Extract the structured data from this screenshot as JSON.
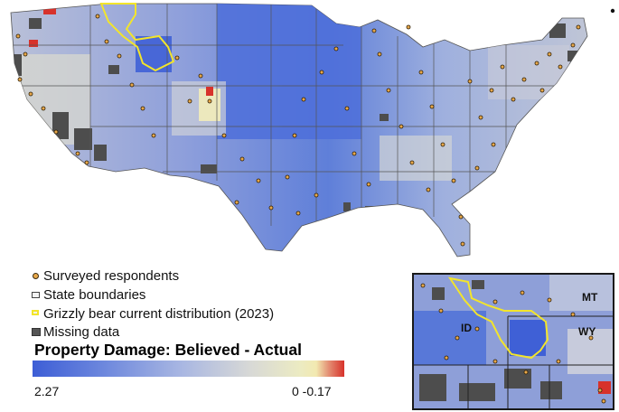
{
  "legend": {
    "items": [
      {
        "label": "Surveyed respondents",
        "icon": "respondent-dot-icon"
      },
      {
        "label": "State boundaries",
        "icon": "state-boundary-icon"
      },
      {
        "label": "Grizzly bear current distribution (2023)",
        "icon": "grizzly-outline-icon"
      },
      {
        "label": "Missing data",
        "icon": "missing-data-icon"
      }
    ],
    "scale_title": "Property Damage: Believed - Actual",
    "scale_min": "2.27",
    "scale_max": "0 -0.17"
  },
  "inset": {
    "labels": {
      "mt": "MT",
      "id": "ID",
      "wy": "WY"
    }
  },
  "colors": {
    "high": "#3d5ed6",
    "mid": "#a9b7e2",
    "low": "#ecebc2",
    "negative": "#d7322b",
    "missing": "#555555",
    "grizzly": "#f3e52a",
    "respondent": "#e8a84a"
  }
}
